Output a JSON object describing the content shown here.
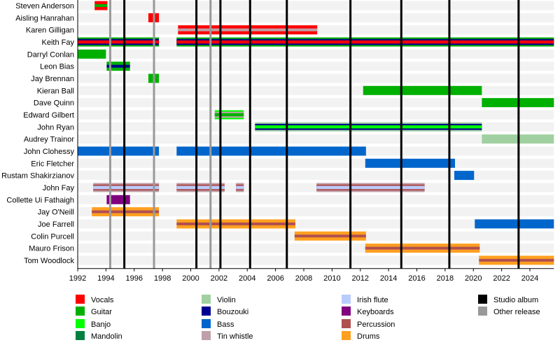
{
  "chart_data": {
    "type": "timeline",
    "xlim": [
      1992,
      2025.7
    ],
    "x_ticks": [
      1992,
      1994,
      1996,
      1998,
      2000,
      2002,
      2004,
      2006,
      2008,
      2010,
      2012,
      2014,
      2016,
      2018,
      2020,
      2022,
      2024
    ],
    "grid": false,
    "legend_position": "bottom",
    "roles": {
      "Vocals": "#ff0000",
      "Guitar": "#00b000",
      "Banjo": "#00ff00",
      "Mandolin": "#008040",
      "Violin": "#a0d0a0",
      "Bouzouki": "#000090",
      "Bass": "#0066cc",
      "Tin whistle": "#bfa0a8",
      "Irish flute": "#b8ccff",
      "Keyboards": "#800080",
      "Percussion": "#b05050",
      "Drums": "#ffa020"
    },
    "legend": [
      {
        "label": "Vocals",
        "color": "#ff0000"
      },
      {
        "label": "Guitar",
        "color": "#00b000"
      },
      {
        "label": "Banjo",
        "color": "#00ff00"
      },
      {
        "label": "Mandolin",
        "color": "#008040"
      },
      {
        "label": "Violin",
        "color": "#a0d0a0"
      },
      {
        "label": "Bouzouki",
        "color": "#000090"
      },
      {
        "label": "Bass",
        "color": "#0066cc"
      },
      {
        "label": "Tin whistle",
        "color": "#bfa0a8"
      },
      {
        "label": "Irish flute",
        "color": "#b8ccff"
      },
      {
        "label": "Keyboards",
        "color": "#800080"
      },
      {
        "label": "Percussion",
        "color": "#b05050"
      },
      {
        "label": "Drums",
        "color": "#ffa020"
      },
      {
        "label": "Studio album",
        "color": "#000000"
      },
      {
        "label": "Other release",
        "color": "#999999"
      }
    ],
    "studio_albums": [
      1995.3,
      2000.4,
      2002.1,
      2004.2,
      2006.8,
      2011.3,
      2014.9,
      2018.3,
      2023.2
    ],
    "other_releases": [
      1994.3,
      1997.4,
      2001.4
    ],
    "members": [
      {
        "name": "Steven Anderson",
        "spans": [
          {
            "from": 1993.2,
            "to": 1994.1,
            "roles": [
              "Vocals",
              "Guitar"
            ]
          }
        ]
      },
      {
        "name": "Aisling Hanrahan",
        "spans": [
          {
            "from": 1997.0,
            "to": 1997.75,
            "roles": [
              "Vocals"
            ]
          }
        ]
      },
      {
        "name": "Karen Gilligan",
        "spans": [
          {
            "from": 1999.1,
            "to": 2008.95,
            "roles": [
              "Vocals",
              "Tin whistle"
            ]
          }
        ]
      },
      {
        "name": "Keith Fay",
        "spans": [
          {
            "from": 1992,
            "to": 1997.75,
            "roles": [
              "Guitar",
              "Bouzouki",
              "Vocals"
            ]
          },
          {
            "from": 1999.0,
            "to": 2025.7,
            "roles": [
              "Guitar",
              "Bouzouki",
              "Vocals"
            ]
          }
        ]
      },
      {
        "name": "Darryl Conlan",
        "spans": [
          {
            "from": 1992,
            "to": 1994.0,
            "roles": [
              "Guitar"
            ]
          }
        ]
      },
      {
        "name": "Leon Bias",
        "spans": [
          {
            "from": 1994.05,
            "to": 1995.7,
            "roles": [
              "Guitar",
              "Bouzouki"
            ]
          }
        ]
      },
      {
        "name": "Jay Brennan",
        "spans": [
          {
            "from": 1997.0,
            "to": 1997.75,
            "roles": [
              "Guitar"
            ]
          }
        ]
      },
      {
        "name": "Kieran Ball",
        "spans": [
          {
            "from": 2012.2,
            "to": 2020.6,
            "roles": [
              "Guitar"
            ]
          }
        ]
      },
      {
        "name": "Dave Quinn",
        "spans": [
          {
            "from": 2020.6,
            "to": 2025.7,
            "roles": [
              "Guitar"
            ]
          }
        ]
      },
      {
        "name": "Edward Gilbert",
        "spans": [
          {
            "from": 2001.7,
            "to": 2003.75,
            "roles": [
              "Banjo",
              "Tin whistle",
              "Guitar"
            ]
          }
        ]
      },
      {
        "name": "John Ryan",
        "spans": [
          {
            "from": 2004.55,
            "to": 2020.6,
            "roles": [
              "Violin",
              "Bouzouki",
              "Banjo"
            ]
          }
        ]
      },
      {
        "name": "Audrey Trainor",
        "spans": [
          {
            "from": 2020.6,
            "to": 2025.7,
            "roles": [
              "Violin"
            ]
          }
        ]
      },
      {
        "name": "John Clohessy",
        "spans": [
          {
            "from": 1992,
            "to": 1997.75,
            "roles": [
              "Bass"
            ]
          },
          {
            "from": 1999.0,
            "to": 2012.4,
            "roles": [
              "Bass"
            ]
          }
        ]
      },
      {
        "name": "Eric Fletcher",
        "spans": [
          {
            "from": 2012.35,
            "to": 2018.7,
            "roles": [
              "Bass"
            ]
          }
        ]
      },
      {
        "name": "Rustam Shakirzianov",
        "spans": [
          {
            "from": 2018.65,
            "to": 2020.05,
            "roles": [
              "Bass"
            ]
          }
        ]
      },
      {
        "name": "John Fay",
        "spans": [
          {
            "from": 1993.1,
            "to": 1997.75,
            "roles": [
              "Tin whistle",
              "Percussion",
              "Irish flute"
            ]
          },
          {
            "from": 1999.0,
            "to": 2002.4,
            "roles": [
              "Tin whistle",
              "Percussion",
              "Irish flute"
            ]
          },
          {
            "from": 2003.2,
            "to": 2003.75,
            "roles": [
              "Tin whistle",
              "Percussion",
              "Irish flute"
            ]
          },
          {
            "from": 2008.9,
            "to": 2016.55,
            "roles": [
              "Tin whistle",
              "Percussion",
              "Irish flute"
            ]
          }
        ]
      },
      {
        "name": "Collette Ui Fathaigh",
        "spans": [
          {
            "from": 1994.05,
            "to": 1995.7,
            "roles": [
              "Keyboards"
            ]
          }
        ]
      },
      {
        "name": "Jay O'Neill",
        "spans": [
          {
            "from": 1993.0,
            "to": 1997.75,
            "roles": [
              "Drums",
              "Percussion"
            ]
          }
        ]
      },
      {
        "name": "Joe Farrell",
        "spans": [
          {
            "from": 1999.0,
            "to": 2007.4,
            "roles": [
              "Drums",
              "Percussion"
            ]
          },
          {
            "from": 2020.1,
            "to": 2025.7,
            "roles": [
              "Bass"
            ]
          }
        ]
      },
      {
        "name": "Colin Purcell",
        "spans": [
          {
            "from": 2007.35,
            "to": 2012.4,
            "roles": [
              "Drums",
              "Percussion"
            ]
          }
        ]
      },
      {
        "name": "Mauro Frison",
        "spans": [
          {
            "from": 2012.35,
            "to": 2020.45,
            "roles": [
              "Drums",
              "Percussion"
            ]
          }
        ]
      },
      {
        "name": "Tom Woodlock",
        "spans": [
          {
            "from": 2020.4,
            "to": 2025.7,
            "roles": [
              "Drums",
              "Percussion"
            ]
          }
        ]
      }
    ]
  }
}
